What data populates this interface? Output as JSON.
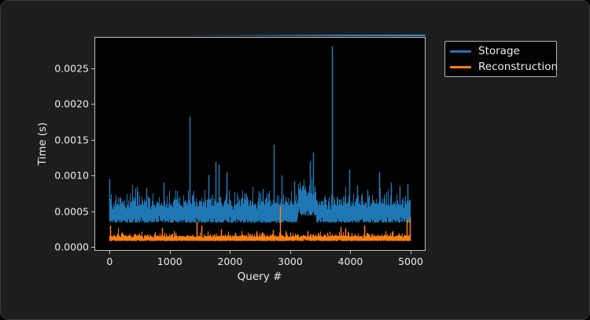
{
  "figure": {
    "panel_bg": "#1d1d1d",
    "plot_bg": "#000000",
    "text_color": "#ececec",
    "spine_color": "#bfbfbf"
  },
  "chart_data": {
    "type": "line",
    "title": "",
    "xlabel": "Query #",
    "ylabel": "Time (s)",
    "xlim": [
      -250,
      5250
    ],
    "ylim": [
      -5e-05,
      0.00293
    ],
    "grid": false,
    "legend_position": "upper-right-outside",
    "n_points": 5000,
    "x_ticks": [
      0,
      1000,
      2000,
      3000,
      4000,
      5000
    ],
    "y_ticks": [
      {
        "value": 0.0,
        "label": "0.0000"
      },
      {
        "value": 0.0005,
        "label": "0.0005"
      },
      {
        "value": 0.001,
        "label": "0.0010"
      },
      {
        "value": 0.0015,
        "label": "0.0015"
      },
      {
        "value": 0.002,
        "label": "0.0020"
      },
      {
        "value": 0.0025,
        "label": "0.0025"
      }
    ],
    "series": [
      {
        "name": "Storage",
        "color": "#1f77b4",
        "noise_seed": 42,
        "baseline_range": [
          0.00034,
          0.0006
        ],
        "frequent_spike_range": [
          0.0006,
          0.001
        ],
        "elevated_region": {
          "from_query": 3130,
          "to_query": 3430,
          "boost": 0.0001
        },
        "major_spikes": [
          [
            5,
            0.00095
          ],
          [
            620,
            0.00082
          ],
          [
            900,
            0.0009
          ],
          [
            1330,
            0.00182
          ],
          [
            1650,
            0.00101
          ],
          [
            1765,
            0.00119
          ],
          [
            1815,
            0.00115
          ],
          [
            1950,
            0.00105
          ],
          [
            2250,
            0.00075
          ],
          [
            2480,
            0.00078
          ],
          [
            2550,
            0.00081
          ],
          [
            2730,
            0.00143
          ],
          [
            2870,
            0.001
          ],
          [
            3070,
            0.00092
          ],
          [
            3330,
            0.0012
          ],
          [
            3380,
            0.00132
          ],
          [
            3700,
            0.00281
          ],
          [
            3990,
            0.00108
          ],
          [
            4120,
            0.00086
          ],
          [
            4290,
            0.0008
          ],
          [
            4490,
            0.00105
          ],
          [
            4680,
            0.0009
          ],
          [
            4830,
            0.00085
          ],
          [
            4960,
            0.00088
          ]
        ]
      },
      {
        "name": "Reconstruction",
        "color": "#ff7f0e",
        "noise_seed": 7,
        "baseline_range": [
          8.5e-05,
          0.00016
        ],
        "frequent_spike_range": [
          0.0002,
          0.00025
        ],
        "elevated_region": null,
        "major_spikes": [
          [
            10,
            0.0003
          ],
          [
            880,
            0.00027
          ],
          [
            1100,
            0.0002
          ],
          [
            1450,
            0.00035
          ],
          [
            1530,
            0.0003
          ],
          [
            1855,
            0.00025
          ],
          [
            2090,
            0.0002
          ],
          [
            2450,
            0.00022
          ],
          [
            2550,
            0.0002
          ],
          [
            2720,
            0.00024
          ],
          [
            2840,
            0.00057
          ],
          [
            3300,
            0.00022
          ],
          [
            3620,
            0.0002
          ],
          [
            3850,
            0.00028
          ],
          [
            3920,
            0.00026
          ],
          [
            4230,
            0.0003
          ],
          [
            4700,
            0.00022
          ],
          [
            4940,
            0.00038
          ],
          [
            4990,
            0.00042
          ]
        ]
      }
    ]
  },
  "legend": {
    "items": [
      {
        "label": "Storage",
        "color": "#1f77b4"
      },
      {
        "label": "Reconstruction",
        "color": "#ff7f0e"
      }
    ]
  }
}
